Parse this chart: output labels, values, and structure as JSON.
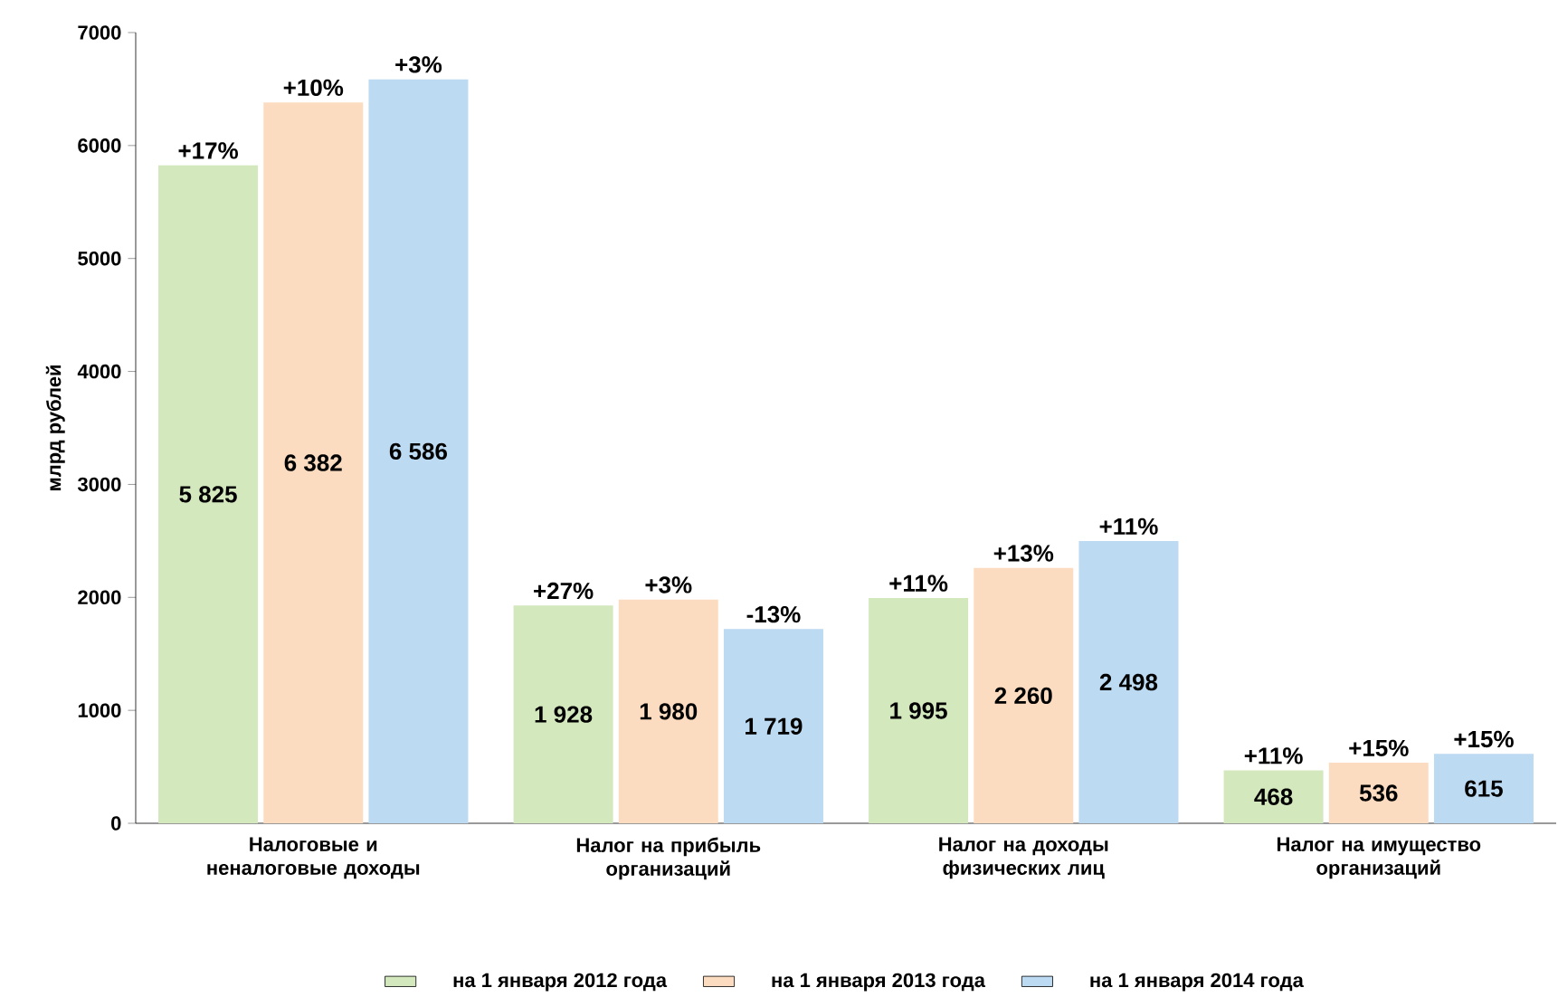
{
  "chart_data": {
    "type": "bar",
    "ylabel": "млрд рублей",
    "categories": [
      "Налоговые и неналоговые доходы",
      "Налог на прибыль организаций",
      "Налог на доходы физических лиц",
      "Налог на имущество организаций"
    ],
    "series": [
      {
        "name": "на 1 января 2012 года",
        "color": "#d3e8bd",
        "values": [
          5825,
          1928,
          1995,
          468
        ],
        "value_labels": [
          "5 825",
          "1 928",
          "1 995",
          "468"
        ]
      },
      {
        "name": "на 1 января 2013 года",
        "color": "#fcdcc0",
        "values": [
          6382,
          1980,
          2260,
          536
        ],
        "value_labels": [
          "6 382",
          "1 980",
          "2 260",
          "536"
        ]
      },
      {
        "name": "на 1 января 2014 года",
        "color": "#bcdaf2",
        "values": [
          6586,
          1719,
          2498,
          615
        ],
        "value_labels": [
          "6 586",
          "1 719",
          "2 498",
          "615"
        ]
      }
    ],
    "ylim": [
      0,
      7000
    ],
    "yticks": [
      0,
      1000,
      2000,
      3000,
      4000,
      5000,
      6000,
      7000
    ],
    "legend": "bottom",
    "annotations": [
      "+17%",
      "+10%",
      "+3%",
      "+27%",
      "+3%",
      "-13%",
      "+11%",
      "+13%",
      "+11%",
      "+11%",
      "+15%",
      "+15%"
    ]
  }
}
